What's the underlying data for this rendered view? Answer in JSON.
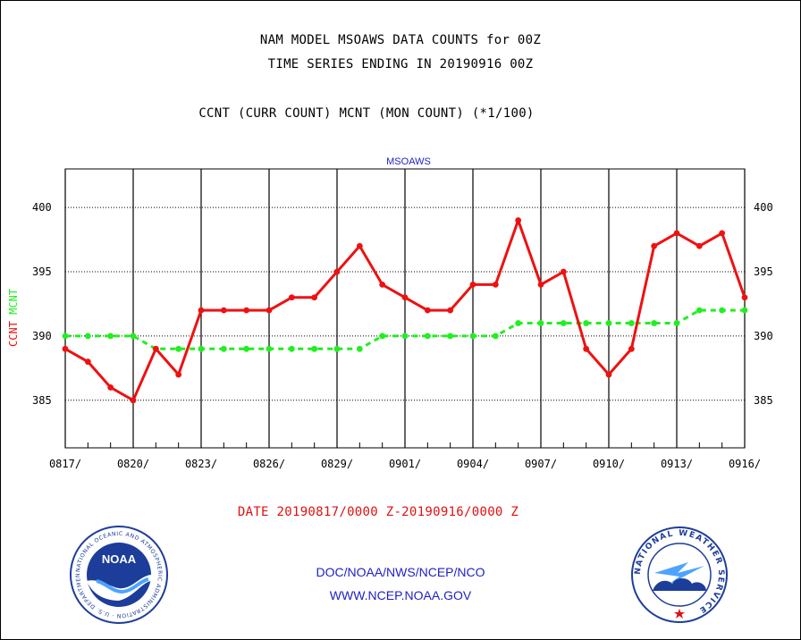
{
  "header": {
    "line1": "NAM MODEL MSOAWS DATA COUNTS for 00Z",
    "line2": "TIME SERIES ENDING IN 20190916 00Z",
    "line3": "CCNT (CURR COUNT) MCNT (MON COUNT) (*1/100)"
  },
  "footer": {
    "date_range": "DATE 20190817/0000 Z-20190916/0000 Z",
    "org": "DOC/NOAA/NWS/NCEP/NCO",
    "url": "WWW.NCEP.NOAA.GOV"
  },
  "logos": {
    "left": {
      "name": "noaa-logo",
      "text": "NOAA",
      "ring_text": "NATIONAL OCEANIC AND ATMOSPHERIC ADMINISTRATION · U.S. DEPARTMENT OF COMMERCE"
    },
    "right": {
      "name": "nws-logo",
      "ring_text": "NATIONAL WEATHER SERVICE"
    }
  },
  "colors": {
    "ccnt": "#ee1111",
    "mcnt": "#22ee22",
    "title": "#1e1ec8",
    "axis": "#000000"
  },
  "chart_data": {
    "type": "line",
    "title": "MSOAWS",
    "ylabel_parts": [
      {
        "text": "CCNT",
        "color": "#ee1111"
      },
      {
        "text": "MCNT",
        "color": "#22ee22"
      }
    ],
    "ylim": [
      381.3,
      403
    ],
    "yticks": [
      385,
      390,
      395,
      400
    ],
    "x_range": [
      0,
      30
    ],
    "xtick_labels": [
      "0817/",
      "0820/",
      "0823/",
      "0826/",
      "0829/",
      "0901/",
      "0904/",
      "0907/",
      "0910/",
      "0913/",
      "0916/"
    ],
    "xtick_positions": [
      0,
      3,
      6,
      9,
      12,
      15,
      18,
      21,
      24,
      27,
      30
    ],
    "grid": true,
    "series": [
      {
        "name": "CCNT",
        "color": "#ee1111",
        "style": "solid",
        "values": [
          389,
          388,
          386,
          385,
          389,
          387,
          392,
          392,
          392,
          392,
          393,
          393,
          395,
          397,
          394,
          393,
          392,
          392,
          394,
          394,
          399,
          394,
          395,
          389,
          387,
          389,
          397,
          398,
          397,
          398,
          393
        ]
      },
      {
        "name": "MCNT",
        "color": "#22ee22",
        "style": "dashed",
        "values": [
          390,
          390,
          390,
          390,
          389,
          389,
          389,
          389,
          389,
          389,
          389,
          389,
          389,
          389,
          390,
          390,
          390,
          390,
          390,
          390,
          391,
          391,
          391,
          391,
          391,
          391,
          391,
          391,
          392,
          392,
          392
        ]
      }
    ]
  }
}
